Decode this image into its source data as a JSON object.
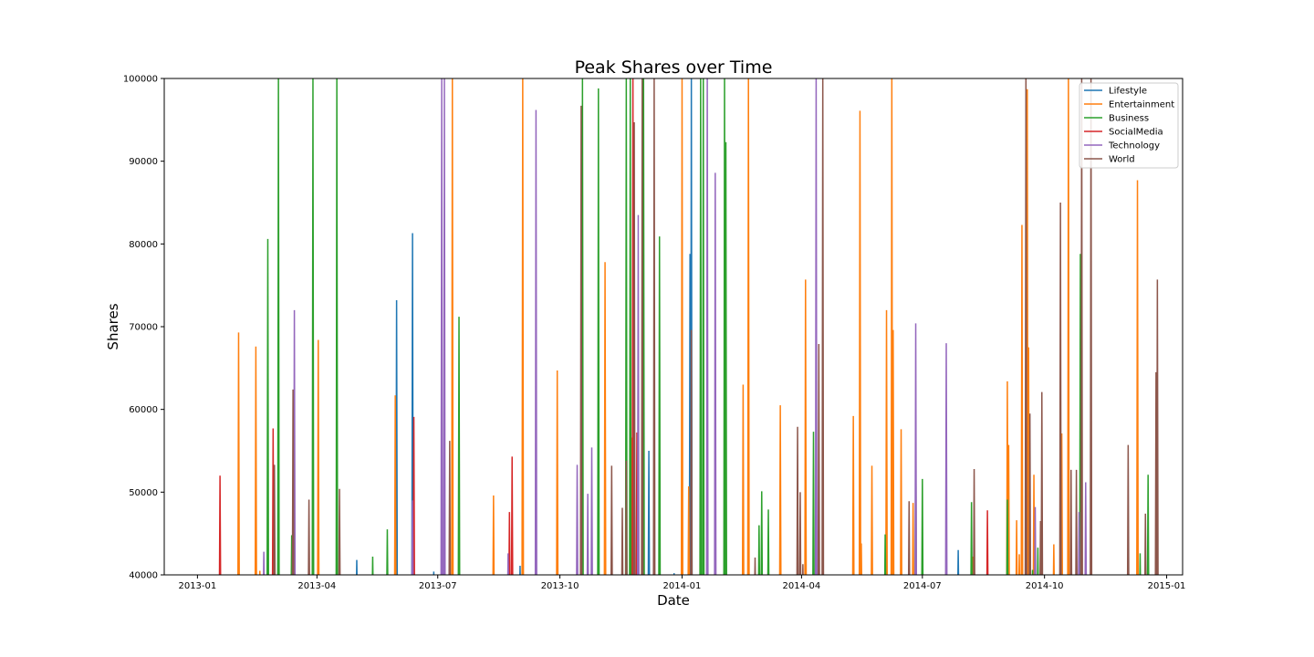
{
  "chart_data": {
    "type": "line",
    "title": "Peak Shares over Time",
    "xlabel": "Date",
    "ylabel": "Shares",
    "xlim": [
      "2012-12-07",
      "2015-01-13"
    ],
    "ylim": [
      40000,
      100000
    ],
    "x_ticks": [
      "2013-01",
      "2013-04",
      "2013-07",
      "2013-10",
      "2014-01",
      "2014-04",
      "2014-07",
      "2014-10",
      "2015-01"
    ],
    "y_ticks": [
      40000,
      50000,
      60000,
      70000,
      80000,
      90000,
      100000
    ],
    "legend_position": "upper-right",
    "grid": false,
    "series": [
      {
        "name": "Lifestyle",
        "color": "#1f77b4",
        "spikes": [
          [
            "2013-02-01",
            40200
          ],
          [
            "2013-05-01",
            41800
          ],
          [
            "2013-05-31",
            73200
          ],
          [
            "2013-06-12",
            81300
          ],
          [
            "2013-06-28",
            40400
          ],
          [
            "2013-09-01",
            41100
          ],
          [
            "2013-12-07",
            55000
          ],
          [
            "2013-12-26",
            40200
          ],
          [
            "2014-01-07",
            78800
          ],
          [
            "2014-01-08",
            100000
          ],
          [
            "2014-07-28",
            43000
          ]
        ]
      },
      {
        "name": "Entertainment",
        "color": "#ff7f0e",
        "spikes": [
          [
            "2013-02-01",
            69300
          ],
          [
            "2013-02-14",
            67600
          ],
          [
            "2013-02-17",
            40500
          ],
          [
            "2013-04-02",
            68400
          ],
          [
            "2013-05-30",
            61700
          ],
          [
            "2013-07-12",
            100000
          ],
          [
            "2013-08-12",
            49600
          ],
          [
            "2013-09-03",
            100000
          ],
          [
            "2013-09-29",
            64700
          ],
          [
            "2013-11-04",
            77800
          ],
          [
            "2013-11-24",
            56600
          ],
          [
            "2014-01-01",
            100000
          ],
          [
            "2014-01-06",
            50700
          ],
          [
            "2014-01-08",
            47400
          ],
          [
            "2014-02-16",
            63000
          ],
          [
            "2014-02-20",
            100000
          ],
          [
            "2014-03-16",
            60500
          ],
          [
            "2014-04-04",
            75700
          ],
          [
            "2014-05-10",
            59200
          ],
          [
            "2014-05-15",
            96100
          ],
          [
            "2014-05-16",
            43800
          ],
          [
            "2014-05-24",
            53200
          ],
          [
            "2014-06-04",
            72000
          ],
          [
            "2014-06-08",
            100000
          ],
          [
            "2014-06-09",
            69600
          ],
          [
            "2014-06-15",
            57600
          ],
          [
            "2014-06-24",
            48700
          ],
          [
            "2014-08-08",
            42200
          ],
          [
            "2014-09-03",
            63400
          ],
          [
            "2014-09-04",
            55700
          ],
          [
            "2014-09-10",
            46600
          ],
          [
            "2014-09-12",
            42500
          ],
          [
            "2014-09-14",
            82300
          ],
          [
            "2014-09-18",
            98700
          ],
          [
            "2014-09-19",
            67500
          ],
          [
            "2014-09-23",
            52100
          ],
          [
            "2014-10-08",
            43700
          ],
          [
            "2014-10-14",
            57100
          ],
          [
            "2014-10-19",
            100000
          ],
          [
            "2014-12-10",
            87700
          ]
        ]
      },
      {
        "name": "Business",
        "color": "#2ca02c",
        "spikes": [
          [
            "2013-02-23",
            80600
          ],
          [
            "2013-03-03",
            100000
          ],
          [
            "2013-03-13",
            44800
          ],
          [
            "2013-03-29",
            100000
          ],
          [
            "2013-04-16",
            100000
          ],
          [
            "2013-05-13",
            42200
          ],
          [
            "2013-05-24",
            45500
          ],
          [
            "2013-07-17",
            71200
          ],
          [
            "2013-10-18",
            100000
          ],
          [
            "2013-10-30",
            98800
          ],
          [
            "2013-11-20",
            100000
          ],
          [
            "2013-11-23",
            100000
          ],
          [
            "2013-12-03",
            100000
          ],
          [
            "2013-12-15",
            80900
          ],
          [
            "2014-01-15",
            100000
          ],
          [
            "2014-01-17",
            100000
          ],
          [
            "2014-02-02",
            100000
          ],
          [
            "2014-02-03",
            92300
          ],
          [
            "2014-02-28",
            46000
          ],
          [
            "2014-03-02",
            50100
          ],
          [
            "2014-03-07",
            47900
          ],
          [
            "2014-04-10",
            57300
          ],
          [
            "2014-06-03",
            44900
          ],
          [
            "2014-06-26",
            57100
          ],
          [
            "2014-07-01",
            51600
          ],
          [
            "2014-08-07",
            48800
          ],
          [
            "2014-09-03",
            49100
          ],
          [
            "2014-09-22",
            40600
          ],
          [
            "2014-09-26",
            43300
          ],
          [
            "2014-10-28",
            78800
          ],
          [
            "2014-12-12",
            42600
          ],
          [
            "2014-12-18",
            52100
          ]
        ]
      },
      {
        "name": "SocialMedia",
        "color": "#d62728",
        "spikes": [
          [
            "2013-01-18",
            52000
          ],
          [
            "2013-02-27",
            57700
          ],
          [
            "2013-06-13",
            59100
          ],
          [
            "2013-08-24",
            47600
          ],
          [
            "2013-08-26",
            54300
          ],
          [
            "2013-11-25",
            100000
          ],
          [
            "2013-11-28",
            57200
          ],
          [
            "2014-08-19",
            47800
          ]
        ]
      },
      {
        "name": "Technology",
        "color": "#9467bd",
        "spikes": [
          [
            "2013-02-20",
            42800
          ],
          [
            "2013-03-15",
            72000
          ],
          [
            "2013-06-12",
            49000
          ],
          [
            "2013-07-04",
            100000
          ],
          [
            "2013-07-06",
            100000
          ],
          [
            "2013-08-23",
            42600
          ],
          [
            "2013-09-13",
            96200
          ],
          [
            "2013-10-14",
            53300
          ],
          [
            "2013-10-22",
            49800
          ],
          [
            "2013-10-25",
            55400
          ],
          [
            "2013-11-29",
            83500
          ],
          [
            "2014-01-20",
            100000
          ],
          [
            "2014-01-26",
            88600
          ],
          [
            "2014-04-12",
            100000
          ],
          [
            "2014-06-26",
            70400
          ],
          [
            "2014-07-19",
            68000
          ],
          [
            "2014-09-17",
            53300
          ],
          [
            "2014-09-24",
            48200
          ],
          [
            "2014-10-27",
            47600
          ],
          [
            "2014-11-01",
            51200
          ]
        ]
      },
      {
        "name": "World",
        "color": "#8c564b",
        "spikes": [
          [
            "2013-02-28",
            53300
          ],
          [
            "2013-03-14",
            62400
          ],
          [
            "2013-03-26",
            49100
          ],
          [
            "2013-04-18",
            50400
          ],
          [
            "2013-07-10",
            56200
          ],
          [
            "2013-10-17",
            96700
          ],
          [
            "2013-11-09",
            53200
          ],
          [
            "2013-11-17",
            48100
          ],
          [
            "2013-11-20",
            53800
          ],
          [
            "2013-11-26",
            94700
          ],
          [
            "2013-12-02",
            100000
          ],
          [
            "2013-12-11",
            100000
          ],
          [
            "2014-01-08",
            69600
          ],
          [
            "2014-02-25",
            42100
          ],
          [
            "2014-03-29",
            57900
          ],
          [
            "2014-03-31",
            50000
          ],
          [
            "2014-04-02",
            41300
          ],
          [
            "2014-04-14",
            67900
          ],
          [
            "2014-04-17",
            100000
          ],
          [
            "2014-06-21",
            48900
          ],
          [
            "2014-08-09",
            52800
          ],
          [
            "2014-09-17",
            100000
          ],
          [
            "2014-09-20",
            59500
          ],
          [
            "2014-09-28",
            46500
          ],
          [
            "2014-09-29",
            62100
          ],
          [
            "2014-10-13",
            85000
          ],
          [
            "2014-10-21",
            52700
          ],
          [
            "2014-10-25",
            52700
          ],
          [
            "2014-10-29",
            100000
          ],
          [
            "2014-11-05",
            100000
          ],
          [
            "2014-12-03",
            55700
          ],
          [
            "2014-12-16",
            47400
          ],
          [
            "2014-12-24",
            64500
          ],
          [
            "2014-12-25",
            75700
          ]
        ]
      }
    ]
  }
}
